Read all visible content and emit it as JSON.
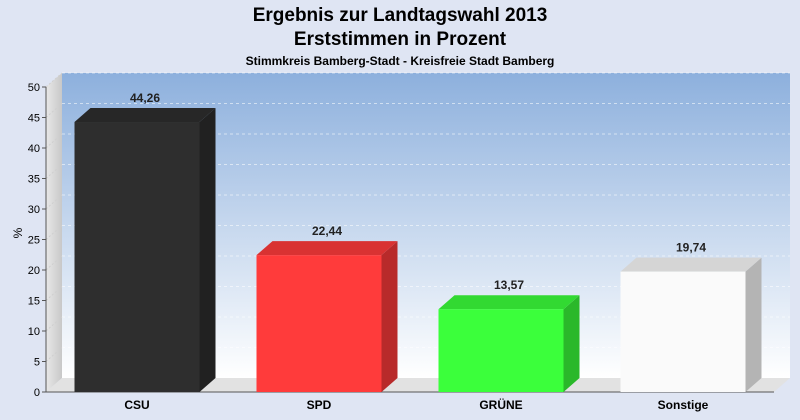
{
  "chart_data": {
    "type": "bar",
    "title": "Ergebnis zur Landtagswahl 2013",
    "subtitle": "Erststimmen in Prozent",
    "caption": "Stimmkreis Bamberg-Stadt - Kreisfreie Stadt Bamberg",
    "ylabel": "%",
    "xlabel": "",
    "ylim": [
      0,
      50
    ],
    "yticks": [
      0,
      5,
      10,
      15,
      20,
      25,
      30,
      35,
      40,
      45,
      50
    ],
    "categories": [
      "CSU",
      "SPD",
      "GRÜNE",
      "Sonstige"
    ],
    "values": [
      44.26,
      22.44,
      13.57,
      19.74
    ],
    "value_labels": [
      "44,26",
      "22,44",
      "13,57",
      "19,74"
    ],
    "colors": [
      "#2e2e2e",
      "#ff3b3b",
      "#3bff3b",
      "#fafafa"
    ],
    "grid": true
  }
}
